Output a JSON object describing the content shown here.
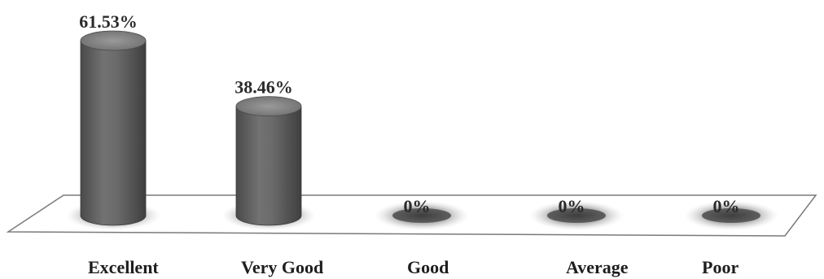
{
  "chart_data": {
    "type": "bar",
    "categories": [
      "Excellent",
      "Very Good",
      "Good",
      "Average",
      "Poor"
    ],
    "values": [
      61.53,
      38.46,
      0,
      0,
      0
    ],
    "data_labels": [
      "61.53%",
      "38.46%",
      "0%",
      "0%",
      "0%"
    ],
    "ylim": [
      0,
      61.53
    ],
    "grid": false,
    "legend": "none",
    "colors": {
      "bar_body": "#5f5f5f",
      "bar_top": "#8e8e8e",
      "floor": "#ffffff",
      "floor_edge": "#7a7a7a",
      "shadow": "#6a6a6a"
    }
  }
}
